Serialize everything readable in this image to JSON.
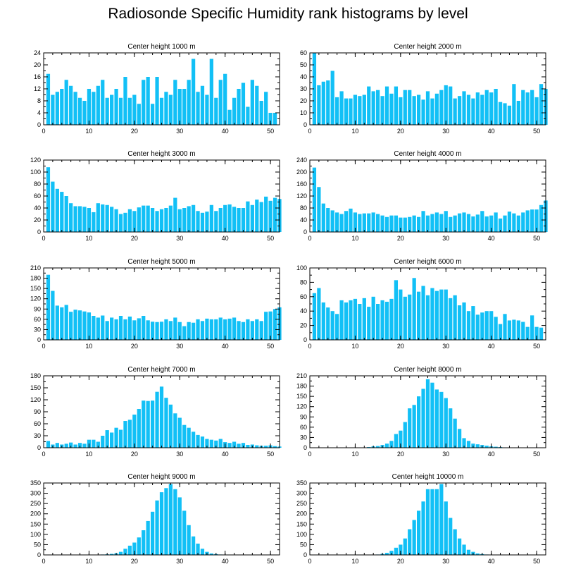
{
  "title": "Radiosonde Specific Humidity rank histograms by level",
  "colors": {
    "bar": "#12c0f6",
    "axis": "#000000"
  },
  "chart_data": [
    {
      "type": "bar",
      "title": "Center height 1000 m",
      "x_range": [
        0,
        52
      ],
      "ylim": [
        0,
        24
      ],
      "xticks": [
        0,
        10,
        20,
        30,
        40,
        50
      ],
      "yticks": [
        0,
        4,
        8,
        12,
        16,
        20,
        24
      ],
      "values": [
        17,
        10,
        11,
        12,
        15,
        13,
        11,
        9,
        8,
        12,
        11,
        13,
        15,
        9,
        10,
        12,
        9,
        16,
        9,
        10,
        7,
        15,
        16,
        7,
        16,
        9,
        11,
        10,
        15,
        12,
        12,
        15,
        22,
        11,
        13,
        10,
        22,
        9,
        15,
        17,
        5,
        9,
        12,
        14,
        6,
        15,
        13,
        8,
        11,
        4,
        4
      ]
    },
    {
      "type": "bar",
      "title": "Center height 2000 m",
      "x_range": [
        0,
        52
      ],
      "ylim": [
        0,
        60
      ],
      "xticks": [
        0,
        10,
        20,
        30,
        40,
        50
      ],
      "yticks": [
        0,
        10,
        20,
        30,
        40,
        50,
        60
      ],
      "values": [
        60,
        33,
        36,
        37,
        45,
        23,
        28,
        22,
        22,
        25,
        24,
        25,
        32,
        28,
        29,
        24,
        32,
        26,
        32,
        23,
        29,
        29,
        24,
        25,
        21,
        28,
        22,
        26,
        29,
        33,
        32,
        22,
        24,
        28,
        25,
        22,
        27,
        25,
        29,
        27,
        30,
        19,
        18,
        16,
        34,
        20,
        29,
        27,
        29,
        23,
        34,
        30
      ]
    },
    {
      "type": "bar",
      "title": "Center height 3000 m",
      "x_range": [
        0,
        52
      ],
      "ylim": [
        0,
        120
      ],
      "xticks": [
        0,
        10,
        20,
        30,
        40,
        50
      ],
      "yticks": [
        0,
        20,
        40,
        60,
        80,
        100,
        120
      ],
      "values": [
        108,
        84,
        72,
        67,
        60,
        48,
        43,
        43,
        42,
        40,
        33,
        48,
        46,
        45,
        42,
        38,
        30,
        32,
        38,
        35,
        41,
        44,
        44,
        40,
        35,
        38,
        40,
        44,
        57,
        38,
        40,
        43,
        45,
        35,
        32,
        34,
        45,
        35,
        40,
        45,
        46,
        42,
        40,
        40,
        51,
        45,
        54,
        50,
        59,
        52,
        57,
        55
      ]
    },
    {
      "type": "bar",
      "title": "Center height 4000 m",
      "x_range": [
        0,
        52
      ],
      "ylim": [
        0,
        240
      ],
      "xticks": [
        0,
        10,
        20,
        30,
        40,
        50
      ],
      "yticks": [
        0,
        40,
        80,
        120,
        160,
        200,
        240
      ],
      "values": [
        215,
        150,
        95,
        80,
        72,
        65,
        60,
        70,
        78,
        65,
        60,
        62,
        62,
        65,
        60,
        55,
        50,
        55,
        55,
        48,
        48,
        50,
        55,
        50,
        70,
        55,
        60,
        65,
        60,
        70,
        50,
        55,
        62,
        65,
        60,
        52,
        58,
        70,
        52,
        55,
        65,
        45,
        55,
        68,
        62,
        55,
        65,
        72,
        75,
        75,
        90,
        105
      ]
    },
    {
      "type": "bar",
      "title": "Center height 5000 m",
      "x_range": [
        0,
        52
      ],
      "ylim": [
        0,
        210
      ],
      "xticks": [
        0,
        10,
        20,
        30,
        40,
        50
      ],
      "yticks": [
        0,
        30,
        60,
        90,
        120,
        150,
        180,
        210
      ],
      "values": [
        190,
        143,
        100,
        95,
        102,
        82,
        88,
        86,
        83,
        80,
        70,
        65,
        71,
        55,
        65,
        60,
        70,
        60,
        68,
        57,
        63,
        70,
        57,
        53,
        52,
        53,
        60,
        55,
        65,
        52,
        40,
        52,
        50,
        60,
        55,
        62,
        60,
        60,
        65,
        60,
        62,
        65,
        55,
        52,
        60,
        55,
        60,
        55,
        82,
        83,
        90,
        95
      ]
    },
    {
      "type": "bar",
      "title": "Center height 6000 m",
      "x_range": [
        0,
        52
      ],
      "ylim": [
        0,
        100
      ],
      "xticks": [
        0,
        10,
        20,
        30,
        40,
        50
      ],
      "yticks": [
        0,
        20,
        40,
        60,
        80,
        100
      ],
      "values": [
        65,
        72,
        52,
        45,
        40,
        36,
        55,
        52,
        55,
        57,
        50,
        58,
        46,
        60,
        50,
        55,
        53,
        57,
        83,
        70,
        60,
        63,
        86,
        67,
        75,
        62,
        72,
        68,
        70,
        70,
        58,
        62,
        48,
        52,
        40,
        47,
        35,
        38,
        40,
        40,
        32,
        22,
        36,
        27,
        28,
        27,
        25,
        18,
        34,
        18,
        17
      ]
    },
    {
      "type": "bar",
      "title": "Center height 7000 m",
      "x_range": [
        0,
        52
      ],
      "ylim": [
        0,
        180
      ],
      "xticks": [
        0,
        10,
        20,
        30,
        40,
        50
      ],
      "yticks": [
        0,
        30,
        60,
        90,
        120,
        150,
        180
      ],
      "values": [
        17,
        8,
        12,
        8,
        10,
        13,
        8,
        12,
        10,
        20,
        20,
        15,
        30,
        44,
        38,
        50,
        45,
        67,
        70,
        83,
        97,
        118,
        117,
        118,
        140,
        153,
        125,
        108,
        86,
        75,
        57,
        50,
        40,
        32,
        28,
        22,
        20,
        18,
        22,
        14,
        12,
        15,
        10,
        12,
        7,
        8,
        6,
        5,
        5,
        6,
        4,
        3
      ]
    },
    {
      "type": "bar",
      "title": "Center height 8000 m",
      "x_range": [
        0,
        52
      ],
      "ylim": [
        0,
        210
      ],
      "xticks": [
        0,
        10,
        20,
        30,
        40,
        50
      ],
      "yticks": [
        0,
        30,
        60,
        90,
        120,
        150,
        180,
        210
      ],
      "values": [
        0,
        0,
        0,
        0,
        0,
        0,
        0,
        0,
        0,
        0,
        0,
        0,
        2,
        4,
        5,
        8,
        12,
        20,
        40,
        50,
        75,
        115,
        125,
        150,
        172,
        200,
        190,
        170,
        163,
        145,
        115,
        85,
        55,
        28,
        20,
        12,
        10,
        8,
        6,
        4,
        3,
        2,
        1,
        1,
        0,
        0,
        0,
        0,
        0,
        0,
        0,
        0
      ]
    },
    {
      "type": "bar",
      "title": "Center height 9000 m",
      "x_range": [
        0,
        52
      ],
      "ylim": [
        0,
        350
      ],
      "xticks": [
        0,
        10,
        20,
        30,
        40,
        50
      ],
      "yticks": [
        0,
        50,
        100,
        150,
        200,
        250,
        300,
        350
      ],
      "values": [
        0,
        0,
        0,
        0,
        0,
        0,
        0,
        0,
        0,
        0,
        0,
        1,
        2,
        3,
        5,
        8,
        15,
        30,
        45,
        60,
        85,
        120,
        165,
        210,
        265,
        305,
        325,
        345,
        320,
        280,
        215,
        145,
        90,
        55,
        30,
        15,
        7,
        4,
        2,
        1,
        0,
        0,
        0,
        0,
        0,
        0,
        0,
        0,
        0,
        0,
        0,
        0
      ]
    },
    {
      "type": "bar",
      "title": "Center height 10000 m",
      "x_range": [
        0,
        52
      ],
      "ylim": [
        0,
        350
      ],
      "xticks": [
        0,
        10,
        20,
        30,
        40,
        50
      ],
      "yticks": [
        0,
        50,
        100,
        150,
        200,
        250,
        300,
        350
      ],
      "values": [
        0,
        0,
        0,
        0,
        0,
        0,
        0,
        0,
        0,
        0,
        0,
        0,
        0,
        1,
        2,
        5,
        10,
        20,
        35,
        50,
        80,
        125,
        170,
        215,
        260,
        320,
        320,
        320,
        345,
        260,
        180,
        125,
        80,
        50,
        25,
        15,
        7,
        4,
        2,
        1,
        0,
        0,
        0,
        0,
        0,
        0,
        0,
        0,
        0,
        0,
        0,
        0
      ]
    }
  ]
}
